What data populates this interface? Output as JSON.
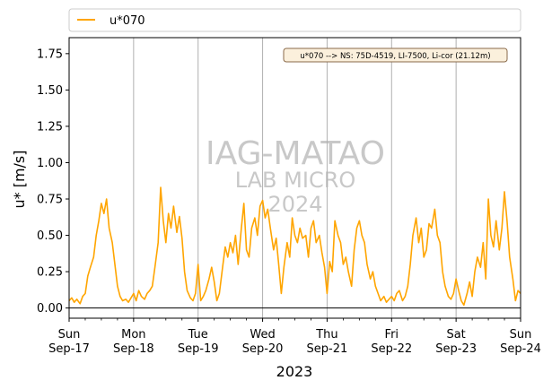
{
  "chart_data": {
    "type": "line",
    "xlabel": "2023",
    "ylabel": "u* [m/s]",
    "ylim": [
      -0.07,
      1.86
    ],
    "xlim": [
      0,
      7
    ],
    "yticks": [
      0.0,
      0.25,
      0.5,
      0.75,
      1.0,
      1.25,
      1.5,
      1.75
    ],
    "ytick_labels": [
      "0.00",
      "0.25",
      "0.50",
      "0.75",
      "1.00",
      "1.25",
      "1.50",
      "1.75"
    ],
    "xticks": [
      {
        "x": 0,
        "day": "Sun",
        "date": "Sep-17"
      },
      {
        "x": 1,
        "day": "Mon",
        "date": "Sep-18"
      },
      {
        "x": 2,
        "day": "Tue",
        "date": "Sep-19"
      },
      {
        "x": 3,
        "day": "Wed",
        "date": "Sep-20"
      },
      {
        "x": 4,
        "day": "Thu",
        "date": "Sep-21"
      },
      {
        "x": 5,
        "day": "Fri",
        "date": "Sep-22"
      },
      {
        "x": 6,
        "day": "Sat",
        "date": "Sep-23"
      },
      {
        "x": 7,
        "day": "Sun",
        "date": "Sep-24"
      }
    ],
    "grid": "vertical at day boundaries",
    "zero_line": true,
    "legend": {
      "placement": "top",
      "entry": "u*070",
      "color": "#ffa500"
    },
    "annotation": "u*070 --> NS: 75D-4519, LI-7500, Li-cor (21.12m)",
    "watermark": [
      "IAG-MATAO",
      "LAB MICRO",
      "2024"
    ],
    "series": [
      {
        "name": "u*070",
        "color": "#ffa500",
        "x": [
          0.0,
          0.04,
          0.08,
          0.12,
          0.17,
          0.21,
          0.25,
          0.29,
          0.33,
          0.38,
          0.42,
          0.46,
          0.5,
          0.54,
          0.58,
          0.62,
          0.67,
          0.71,
          0.75,
          0.79,
          0.83,
          0.88,
          0.92,
          0.96,
          1.0,
          1.04,
          1.08,
          1.12,
          1.17,
          1.21,
          1.25,
          1.29,
          1.33,
          1.38,
          1.42,
          1.46,
          1.5,
          1.54,
          1.58,
          1.62,
          1.67,
          1.71,
          1.75,
          1.79,
          1.83,
          1.88,
          1.92,
          1.96,
          2.0,
          2.04,
          2.08,
          2.12,
          2.17,
          2.21,
          2.25,
          2.29,
          2.33,
          2.38,
          2.42,
          2.46,
          2.5,
          2.54,
          2.58,
          2.62,
          2.67,
          2.71,
          2.75,
          2.79,
          2.83,
          2.88,
          2.92,
          2.96,
          3.0,
          3.04,
          3.08,
          3.12,
          3.17,
          3.21,
          3.25,
          3.29,
          3.33,
          3.38,
          3.42,
          3.46,
          3.5,
          3.54,
          3.58,
          3.62,
          3.67,
          3.71,
          3.75,
          3.79,
          3.83,
          3.88,
          3.92,
          3.96,
          4.0,
          4.04,
          4.08,
          4.12,
          4.17,
          4.21,
          4.25,
          4.29,
          4.33,
          4.38,
          4.42,
          4.46,
          4.5,
          4.54,
          4.58,
          4.62,
          4.67,
          4.71,
          4.75,
          4.79,
          4.83,
          4.88,
          4.92,
          4.96,
          5.0,
          5.04,
          5.08,
          5.12,
          5.17,
          5.21,
          5.25,
          5.29,
          5.33,
          5.38,
          5.42,
          5.46,
          5.5,
          5.54,
          5.58,
          5.62,
          5.67,
          5.71,
          5.75,
          5.79,
          5.83,
          5.88,
          5.92,
          5.96,
          6.0,
          6.04,
          6.08,
          6.12,
          6.17,
          6.21,
          6.25,
          6.29,
          6.33,
          6.38,
          6.42,
          6.46,
          6.5,
          6.54,
          6.58,
          6.62,
          6.67,
          6.71,
          6.75,
          6.79,
          6.83,
          6.88,
          6.92,
          6.96,
          7.0
        ],
        "y": [
          0.05,
          0.07,
          0.04,
          0.06,
          0.03,
          0.08,
          0.1,
          0.22,
          0.28,
          0.35,
          0.5,
          0.6,
          0.72,
          0.65,
          0.75,
          0.55,
          0.45,
          0.3,
          0.15,
          0.08,
          0.05,
          0.06,
          0.04,
          0.07,
          0.1,
          0.05,
          0.12,
          0.08,
          0.06,
          0.1,
          0.12,
          0.15,
          0.28,
          0.45,
          0.83,
          0.6,
          0.45,
          0.65,
          0.55,
          0.7,
          0.52,
          0.63,
          0.48,
          0.25,
          0.12,
          0.07,
          0.05,
          0.1,
          0.3,
          0.05,
          0.08,
          0.12,
          0.2,
          0.28,
          0.18,
          0.05,
          0.1,
          0.28,
          0.42,
          0.35,
          0.45,
          0.38,
          0.5,
          0.3,
          0.55,
          0.72,
          0.4,
          0.35,
          0.55,
          0.62,
          0.5,
          0.7,
          0.74,
          0.62,
          0.68,
          0.55,
          0.4,
          0.48,
          0.3,
          0.1,
          0.28,
          0.45,
          0.35,
          0.62,
          0.5,
          0.45,
          0.55,
          0.48,
          0.5,
          0.35,
          0.55,
          0.6,
          0.45,
          0.5,
          0.38,
          0.28,
          0.1,
          0.32,
          0.25,
          0.6,
          0.5,
          0.45,
          0.3,
          0.35,
          0.25,
          0.15,
          0.4,
          0.55,
          0.6,
          0.5,
          0.45,
          0.3,
          0.2,
          0.25,
          0.15,
          0.1,
          0.05,
          0.08,
          0.04,
          0.06,
          0.08,
          0.05,
          0.1,
          0.12,
          0.05,
          0.08,
          0.15,
          0.3,
          0.5,
          0.62,
          0.45,
          0.55,
          0.35,
          0.4,
          0.58,
          0.55,
          0.68,
          0.5,
          0.45,
          0.25,
          0.15,
          0.08,
          0.06,
          0.1,
          0.2,
          0.12,
          0.05,
          0.02,
          0.1,
          0.18,
          0.08,
          0.25,
          0.35,
          0.28,
          0.45,
          0.2,
          0.75,
          0.5,
          0.42,
          0.6,
          0.4,
          0.55,
          0.8,
          0.6,
          0.35,
          0.2,
          0.05,
          0.12,
          0.1
        ]
      }
    ]
  }
}
